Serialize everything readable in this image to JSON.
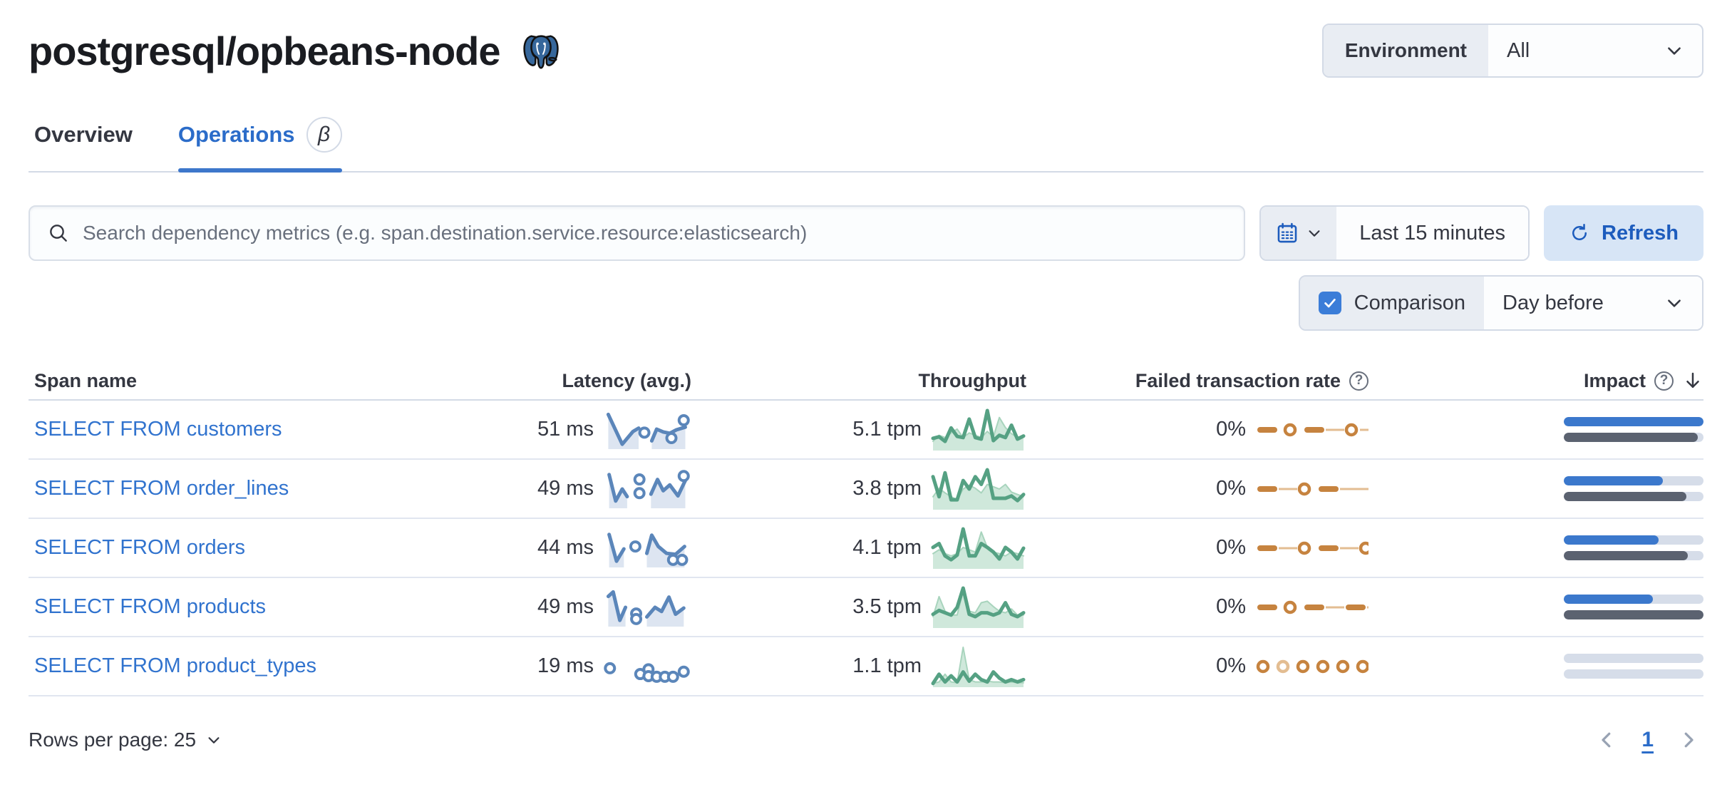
{
  "page": {
    "title": "postgresql/opbeans-node",
    "logo_icon": "postgresql-elephant-icon"
  },
  "header": {
    "environment_label": "Environment",
    "environment_value": "All"
  },
  "tabs": [
    {
      "label": "Overview",
      "active": false
    },
    {
      "label": "Operations",
      "active": true,
      "beta_badge": "β"
    }
  ],
  "toolbar": {
    "search_placeholder": "Search dependency metrics (e.g. span.destination.service.resource:elasticsearch)",
    "time_range": "Last 15 minutes",
    "refresh_label": "Refresh",
    "comparison_label": "Comparison",
    "comparison_checked": true,
    "comparison_value": "Day before"
  },
  "table": {
    "columns": {
      "span_name": "Span name",
      "latency": "Latency (avg.)",
      "throughput": "Throughput",
      "failed_rate": "Failed transaction rate",
      "impact": "Impact"
    }
  },
  "footer": {
    "rows_per_page_label": "Rows per page: 25",
    "page_number": "1"
  },
  "colors": {
    "primary_blue": "#2b6cc9",
    "link_blue": "#3173ce",
    "refresh_bg": "#d7e5f6",
    "form_prepend_bg": "#e9edf3",
    "border": "#d3dae6",
    "row_border": "#e1e6f0",
    "latency_line": "#5b86ba",
    "latency_area": "#dde5f1",
    "throughput_line": "#55a183",
    "throughput_area": "#cfe8db",
    "failed_orange": "#c6833f",
    "failed_orange_light": "#e3bd92",
    "impact_current": "#3b78cc",
    "impact_previous": "#5b6270",
    "impact_track": "#d6dde9"
  },
  "chart_data": {
    "type": "table",
    "title": "Dependency operations (postgresql/opbeans-node)",
    "legend": {
      "current_period": "Last 15 minutes",
      "comparison_period": "Day before"
    },
    "rows": [
      {
        "span_name": "SELECT FROM customers",
        "latency_label": "51 ms",
        "latency_ms": 51,
        "throughput_label": "5.1 tpm",
        "throughput_tpm": 5.1,
        "failed_rate_label": "0%",
        "failed_rate_pct": 0,
        "impact": {
          "current": 1.0,
          "previous": 0.96
        },
        "latency_spark": {
          "paths": [
            {
              "points": [
                [
                  0.03,
                  0.95
                ],
                [
                  0.2,
                  0.08
                ],
                [
                  0.33,
                  0.45
                ],
                [
                  0.4,
                  0.55
                ]
              ],
              "area": true
            },
            {
              "points": [
                [
                  0.56,
                  0.18
                ],
                [
                  0.62,
                  0.52
                ],
                [
                  0.7,
                  0.44
                ],
                [
                  0.78,
                  0.4
                ],
                [
                  0.86,
                  0.5
                ],
                [
                  0.97,
                  0.58
                ]
              ],
              "area": true
            }
          ],
          "dots": [
            [
              0.47,
              0.42
            ],
            [
              0.8,
              0.26
            ],
            [
              0.95,
              0.78
            ]
          ]
        },
        "throughput_spark": {
          "current": [
            0.28,
            0.32,
            0.2,
            0.55,
            0.33,
            0.3,
            0.78,
            0.3,
            0.26,
            1.0,
            0.22,
            0.36,
            0.3,
            0.62,
            0.26,
            0.34
          ],
          "previous": [
            0.2,
            0.36,
            0.3,
            0.42,
            0.52,
            0.3,
            0.42,
            0.36,
            0.3,
            0.46,
            0.32,
            0.82,
            0.56,
            0.4,
            0.3,
            0.36
          ]
        },
        "failed_spark": {
          "pattern": [
            "dash",
            "dot",
            "dash",
            "thin",
            "dot",
            "thin",
            "dot"
          ]
        }
      },
      {
        "span_name": "SELECT FROM order_lines",
        "latency_label": "49 ms",
        "latency_ms": 49,
        "throughput_label": "3.8 tpm",
        "throughput_tpm": 3.8,
        "failed_rate_label": "0%",
        "failed_rate_pct": 0,
        "impact": {
          "current": 0.71,
          "previous": 0.88
        },
        "latency_spark": {
          "paths": [
            {
              "points": [
                [
                  0.04,
                  0.92
                ],
                [
                  0.12,
                  0.15
                ],
                [
                  0.2,
                  0.5
                ],
                [
                  0.26,
                  0.28
                ]
              ],
              "area": true
            },
            {
              "points": [
                [
                  0.55,
                  0.35
                ],
                [
                  0.63,
                  0.78
                ],
                [
                  0.7,
                  0.45
                ],
                [
                  0.78,
                  0.62
                ],
                [
                  0.88,
                  0.3
                ],
                [
                  0.97,
                  0.75
                ]
              ],
              "area": true
            }
          ],
          "dots": [
            [
              0.41,
              0.78
            ],
            [
              0.41,
              0.38
            ],
            [
              0.95,
              0.88
            ]
          ]
        },
        "throughput_spark": {
          "current": [
            0.82,
            0.3,
            0.92,
            0.22,
            0.22,
            0.72,
            0.5,
            0.82,
            0.62,
            1.0,
            0.26,
            0.26,
            0.26,
            0.32,
            0.2,
            0.36
          ],
          "previous": [
            0.3,
            0.52,
            0.4,
            0.3,
            0.22,
            0.5,
            0.6,
            0.52,
            0.4,
            0.62,
            0.56,
            0.5,
            0.62,
            0.42,
            0.36,
            0.3
          ]
        },
        "failed_spark": {
          "pattern": [
            "dash",
            "thin",
            "dot",
            "dash",
            "thin",
            "thin",
            "dot"
          ]
        }
      },
      {
        "span_name": "SELECT FROM orders",
        "latency_label": "44 ms",
        "latency_ms": 44,
        "throughput_label": "4.1 tpm",
        "throughput_tpm": 4.1,
        "failed_rate_label": "0%",
        "failed_rate_pct": 0,
        "impact": {
          "current": 0.68,
          "previous": 0.89
        },
        "latency_spark": {
          "paths": [
            {
              "points": [
                [
                  0.04,
                  0.9
                ],
                [
                  0.13,
                  0.12
                ],
                [
                  0.22,
                  0.48
                ]
              ],
              "area": true
            },
            {
              "points": [
                [
                  0.5,
                  0.35
                ],
                [
                  0.56,
                  0.88
                ],
                [
                  0.64,
                  0.55
                ],
                [
                  0.74,
                  0.35
                ],
                [
                  0.85,
                  0.32
                ],
                [
                  0.96,
                  0.55
                ]
              ],
              "area": true
            }
          ],
          "dots": [
            [
              0.36,
              0.55
            ],
            [
              0.82,
              0.16
            ],
            [
              0.93,
              0.16
            ]
          ]
        },
        "throughput_spark": {
          "current": [
            0.52,
            0.62,
            0.3,
            0.2,
            0.32,
            1.0,
            0.3,
            0.3,
            0.62,
            0.52,
            0.4,
            0.22,
            0.52,
            0.4,
            0.22,
            0.5
          ],
          "previous": [
            0.36,
            0.46,
            0.36,
            0.3,
            0.36,
            0.52,
            0.46,
            0.4,
            0.92,
            0.52,
            0.4,
            0.36,
            0.3,
            0.4,
            0.36,
            0.3
          ]
        },
        "failed_spark": {
          "pattern": [
            "dash",
            "thin",
            "dot",
            "dash",
            "thin",
            "dot",
            "dot"
          ]
        }
      },
      {
        "span_name": "SELECT FROM products",
        "latency_label": "49 ms",
        "latency_ms": 49,
        "throughput_label": "3.5 tpm",
        "throughput_tpm": 3.5,
        "failed_rate_label": "0%",
        "failed_rate_pct": 0,
        "impact": {
          "current": 0.64,
          "previous": 1.0
        },
        "latency_spark": {
          "paths": [
            {
              "points": [
                [
                  0.03,
                  0.82
                ],
                [
                  0.09,
                  0.95
                ],
                [
                  0.17,
                  0.12
                ],
                [
                  0.24,
                  0.5
                ]
              ],
              "area": true
            },
            {
              "points": [
                [
                  0.5,
                  0.22
                ],
                [
                  0.6,
                  0.5
                ],
                [
                  0.68,
                  0.38
                ],
                [
                  0.77,
                  0.8
                ],
                [
                  0.85,
                  0.3
                ],
                [
                  0.95,
                  0.48
                ]
              ],
              "area": true
            }
          ],
          "dots": [
            [
              0.37,
              0.32
            ],
            [
              0.37,
              0.16
            ]
          ]
        },
        "throughput_spark": {
          "current": [
            0.32,
            0.42,
            0.36,
            0.3,
            0.5,
            1.0,
            0.32,
            0.26,
            0.36,
            0.36,
            0.3,
            0.36,
            0.62,
            0.32,
            0.26,
            0.36
          ],
          "previous": [
            0.26,
            0.78,
            0.4,
            0.3,
            0.3,
            0.92,
            0.4,
            0.36,
            0.62,
            0.66,
            0.52,
            0.4,
            0.36,
            0.46,
            0.3,
            0.3
          ]
        },
        "failed_spark": {
          "pattern": [
            "dash",
            "dot",
            "dash",
            "thin",
            "dash",
            "thin"
          ]
        }
      },
      {
        "span_name": "SELECT FROM product_types",
        "latency_label": "19 ms",
        "latency_ms": 19,
        "throughput_label": "1.1 tpm",
        "throughput_tpm": 1.1,
        "failed_rate_label": "0%",
        "failed_rate_pct": 0,
        "impact": {
          "current": 0.0,
          "previous": 0.0
        },
        "latency_spark": {
          "paths": [],
          "dots": [
            [
              0.05,
              0.45
            ],
            [
              0.42,
              0.28
            ],
            [
              0.52,
              0.42
            ],
            [
              0.52,
              0.22
            ],
            [
              0.62,
              0.2
            ],
            [
              0.72,
              0.2
            ],
            [
              0.82,
              0.2
            ],
            [
              0.95,
              0.35
            ]
          ]
        },
        "throughput_spark": {
          "current": [
            0.06,
            0.3,
            0.1,
            0.26,
            0.1,
            0.36,
            0.12,
            0.3,
            0.16,
            0.1,
            0.36,
            0.2,
            0.1,
            0.16,
            0.1,
            0.16
          ],
          "previous": [
            0.06,
            0.1,
            0.3,
            0.1,
            0.08,
            1.0,
            0.16,
            0.1,
            0.1,
            0.12,
            0.1,
            0.1,
            0.08,
            0.1,
            0.08,
            0.08
          ]
        },
        "failed_spark": {
          "pattern": [
            "dot",
            "dot-light",
            "dot",
            "dot",
            "dot",
            "dot",
            "dot"
          ]
        }
      }
    ]
  }
}
